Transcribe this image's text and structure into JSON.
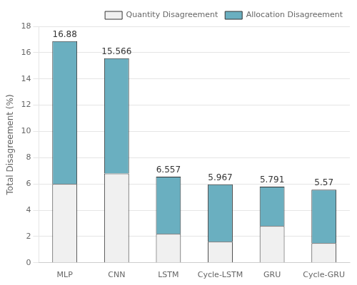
{
  "chart_data": {
    "type": "bar",
    "stacked": true,
    "categories": [
      "MLP",
      "CNN",
      "LSTM",
      "Cycle-LSTM",
      "GRU",
      "Cycle-GRU"
    ],
    "series": [
      {
        "name": "Quantity Disagreement",
        "color": "#f0f0f0",
        "values": [
          6.0,
          6.8,
          2.2,
          1.6,
          2.8,
          1.5
        ]
      },
      {
        "name": "Allocation Disagreement",
        "color": "#6aafc0",
        "values": [
          10.88,
          8.766,
          4.357,
          4.367,
          2.991,
          4.07
        ]
      }
    ],
    "totals": [
      16.88,
      15.566,
      6.557,
      5.967,
      5.791,
      5.57
    ],
    "ylabel": "Total Disagreement (%)",
    "ylim": [
      0,
      18
    ],
    "yticks": [
      0,
      2,
      4,
      6,
      8,
      10,
      12,
      14,
      16,
      18
    ],
    "grid": true,
    "legend": "upper right"
  }
}
